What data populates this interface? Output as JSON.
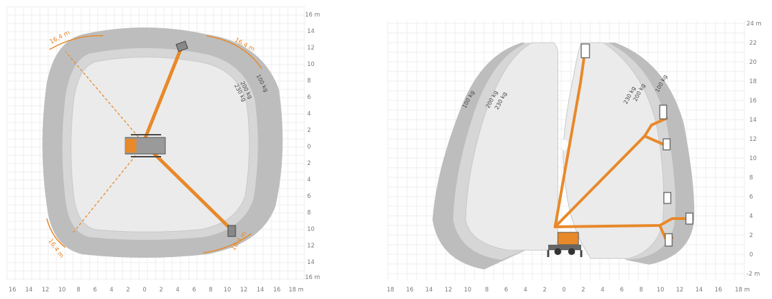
{
  "left_diagram": {
    "x_ticks": [
      "16",
      "14",
      "12",
      "10",
      "8",
      "6",
      "4",
      "2",
      "0",
      "2",
      "4",
      "6",
      "8",
      "10",
      "12",
      "14",
      "16",
      "18 m"
    ],
    "y_ticks": [
      "16 m",
      "14",
      "12",
      "10",
      "8",
      "6",
      "4",
      "2",
      "0",
      "2",
      "4",
      "6",
      "8",
      "10",
      "12",
      "14",
      "16 m"
    ],
    "reach_labels": [
      "16,4 m",
      "16,4 m",
      "16,4 m",
      "16,4 m"
    ],
    "capacity_labels": [
      "100 kg",
      "200 kg",
      "230 kg"
    ]
  },
  "right_diagram": {
    "x_ticks": [
      "18",
      "16",
      "14",
      "12",
      "10",
      "8",
      "6",
      "4",
      "2",
      "0",
      "2",
      "4",
      "6",
      "8",
      "10",
      "12",
      "14",
      "16",
      "18 m"
    ],
    "y_ticks": [
      "24 m",
      "22",
      "20",
      "18",
      "16",
      "14",
      "12",
      "10",
      "8",
      "6",
      "4",
      "2",
      "0",
      "-2 m"
    ],
    "left_capacity_labels": [
      "100 kg",
      "200 kg",
      "230 kg"
    ],
    "right_capacity_labels": [
      "230 kg",
      "200 kg",
      "100 kg"
    ]
  },
  "colors": {
    "boom": "#e8892a",
    "outer_band": "#bdbdbd",
    "mid_band": "#d6d6d6",
    "inner_area": "#ebebeb",
    "grid": "#eeeeee"
  }
}
